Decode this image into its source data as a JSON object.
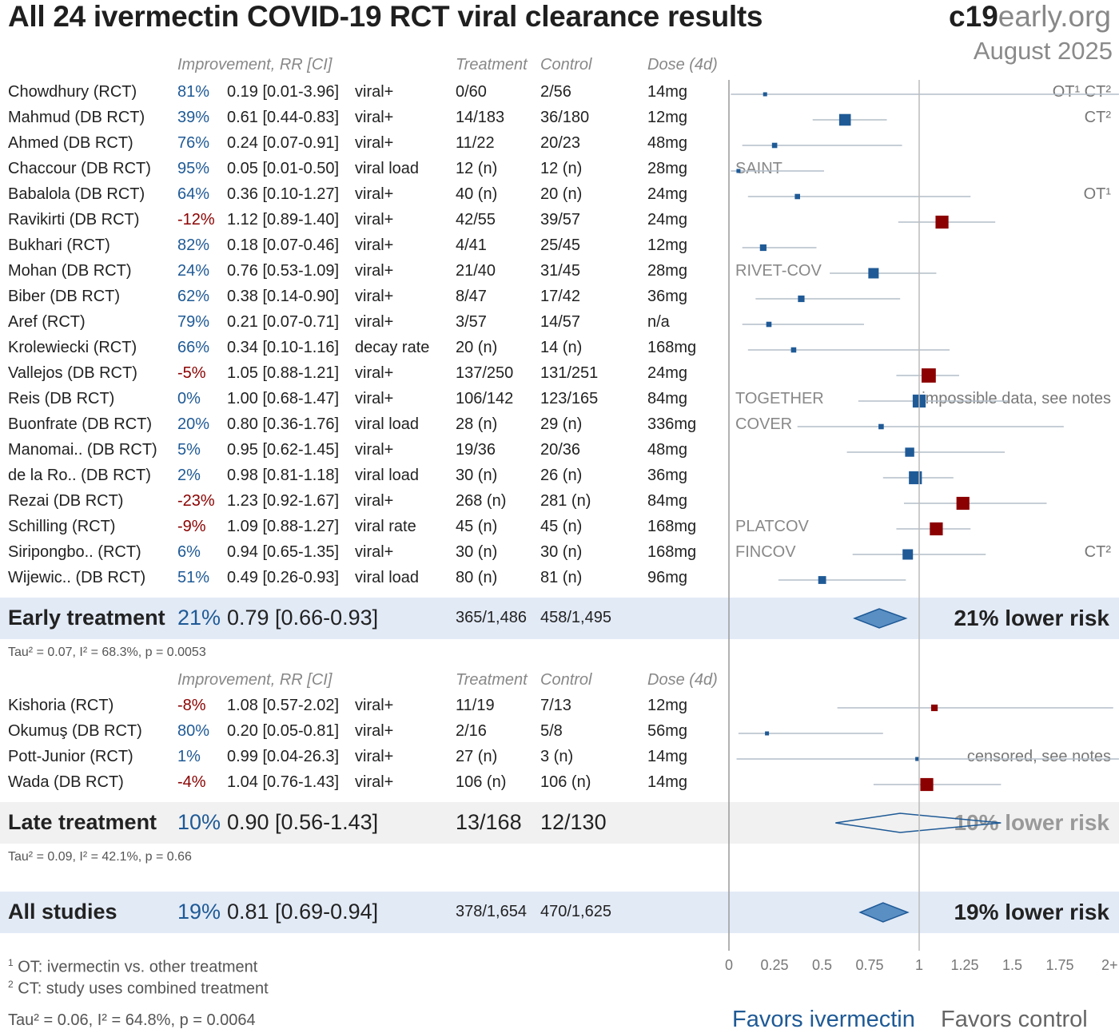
{
  "title": "All 24 ivermectin COVID-19 RCT viral clearance results",
  "brand": {
    "bold": "c19",
    "light": "early.org"
  },
  "date": "August 2025",
  "headers": {
    "improvement": "Improvement, RR [CI]",
    "treatment": "Treatment",
    "control": "Control",
    "dose": "Dose (4d)"
  },
  "colors": {
    "benefit": "#1f5a96",
    "harm": "#8b0000",
    "ci_line": "#b3bdc9",
    "diamond_fill": "#5a8fc4",
    "diamond_stroke": "#1f5a96",
    "band_blue": "#e2eaf6",
    "band_grey": "#f1f1f1"
  },
  "early_studies": [
    {
      "name": "Chowdhury (RCT)",
      "improvement": "81%",
      "rr_text": "0.19 [0.01-3.96]",
      "outcome": "viral+",
      "treatment": "0/60",
      "control": "2/56",
      "dose": "14mg",
      "rr": 0.19,
      "lo": 0.01,
      "hi": 3.96,
      "weight": 1,
      "note": "OT¹ CT²"
    },
    {
      "name": "Mahmud (DB RCT)",
      "improvement": "39%",
      "rr_text": "0.61 [0.44-0.83]",
      "outcome": "viral+",
      "treatment": "14/183",
      "control": "36/180",
      "dose": "12mg",
      "rr": 0.61,
      "lo": 0.44,
      "hi": 0.83,
      "weight": 7,
      "note": "CT²"
    },
    {
      "name": "Ahmed (DB RCT)",
      "improvement": "76%",
      "rr_text": "0.24 [0.07-0.91]",
      "outcome": "viral+",
      "treatment": "11/22",
      "control": "20/23",
      "dose": "48mg",
      "rr": 0.24,
      "lo": 0.07,
      "hi": 0.91,
      "weight": 2
    },
    {
      "name": "Chaccour (DB RCT)",
      "improvement": "95%",
      "rr_text": "0.05 [0.01-0.50]",
      "outcome": "viral load",
      "treatment": "12 (n)",
      "control": "12 (n)",
      "dose": "28mg",
      "rr": 0.05,
      "lo": 0.01,
      "hi": 0.5,
      "weight": 1,
      "trial": "SAINT"
    },
    {
      "name": "Babalola (DB RCT)",
      "improvement": "64%",
      "rr_text": "0.36 [0.10-1.27]",
      "outcome": "viral+",
      "treatment": "40 (n)",
      "control": "20 (n)",
      "dose": "24mg",
      "rr": 0.36,
      "lo": 0.1,
      "hi": 1.27,
      "weight": 2,
      "note": "OT¹"
    },
    {
      "name": "Ravikirti (DB RCT)",
      "improvement": "-12%",
      "rr_text": "1.12 [0.89-1.40]",
      "outcome": "viral+",
      "treatment": "42/55",
      "control": "39/57",
      "dose": "24mg",
      "rr": 1.12,
      "lo": 0.89,
      "hi": 1.4,
      "weight": 8
    },
    {
      "name": "Bukhari (RCT)",
      "improvement": "82%",
      "rr_text": "0.18 [0.07-0.46]",
      "outcome": "viral+",
      "treatment": "4/41",
      "control": "25/45",
      "dose": "12mg",
      "rr": 0.18,
      "lo": 0.07,
      "hi": 0.46,
      "weight": 3
    },
    {
      "name": "Mohan (DB RCT)",
      "improvement": "24%",
      "rr_text": "0.76 [0.53-1.09]",
      "outcome": "viral+",
      "treatment": "21/40",
      "control": "31/45",
      "dose": "28mg",
      "rr": 0.76,
      "lo": 0.53,
      "hi": 1.09,
      "weight": 6,
      "trial": "RIVET-COV"
    },
    {
      "name": "Biber (DB RCT)",
      "improvement": "62%",
      "rr_text": "0.38 [0.14-0.90]",
      "outcome": "viral+",
      "treatment": "8/47",
      "control": "17/42",
      "dose": "36mg",
      "rr": 0.38,
      "lo": 0.14,
      "hi": 0.9,
      "weight": 3
    },
    {
      "name": "Aref (RCT)",
      "improvement": "79%",
      "rr_text": "0.21 [0.07-0.71]",
      "outcome": "viral+",
      "treatment": "3/57",
      "control": "14/57",
      "dose": "n/a",
      "rr": 0.21,
      "lo": 0.07,
      "hi": 0.71,
      "weight": 2
    },
    {
      "name": "Krolewiecki (RCT)",
      "improvement": "66%",
      "rr_text": "0.34 [0.10-1.16]",
      "outcome": "decay rate",
      "treatment": "20 (n)",
      "control": "14 (n)",
      "dose": "168mg",
      "rr": 0.34,
      "lo": 0.1,
      "hi": 1.16,
      "weight": 2
    },
    {
      "name": "Vallejos (DB RCT)",
      "improvement": "-5%",
      "rr_text": "1.05 [0.88-1.21]",
      "outcome": "viral+",
      "treatment": "137/250",
      "control": "131/251",
      "dose": "24mg",
      "rr": 1.05,
      "lo": 0.88,
      "hi": 1.21,
      "weight": 9
    },
    {
      "name": "Reis (DB RCT)",
      "improvement": "0%",
      "rr_text": "1.00 [0.68-1.47]",
      "outcome": "viral+",
      "treatment": "106/142",
      "control": "123/165",
      "dose": "84mg",
      "rr": 1.0,
      "lo": 0.68,
      "hi": 1.47,
      "weight": 8,
      "trial": "TOGETHER",
      "note": "impossible data, see notes"
    },
    {
      "name": "Buonfrate (DB RCT)",
      "improvement": "20%",
      "rr_text": "0.80 [0.36-1.76]",
      "outcome": "viral load",
      "treatment": "28 (n)",
      "control": "29 (n)",
      "dose": "336mg",
      "rr": 0.8,
      "lo": 0.36,
      "hi": 1.76,
      "weight": 2,
      "trial": "COVER"
    },
    {
      "name": "Manomai.. (DB RCT)",
      "improvement": "5%",
      "rr_text": "0.95 [0.62-1.45]",
      "outcome": "viral+",
      "treatment": "19/36",
      "control": "20/36",
      "dose": "48mg",
      "rr": 0.95,
      "lo": 0.62,
      "hi": 1.45,
      "weight": 5
    },
    {
      "name": "de la Ro.. (DB RCT)",
      "improvement": "2%",
      "rr_text": "0.98 [0.81-1.18]",
      "outcome": "viral load",
      "treatment": "30 (n)",
      "control": "26 (n)",
      "dose": "36mg",
      "rr": 0.98,
      "lo": 0.81,
      "hi": 1.18,
      "weight": 8
    },
    {
      "name": "Rezai (DB RCT)",
      "improvement": "-23%",
      "rr_text": "1.23 [0.92-1.67]",
      "outcome": "viral+",
      "treatment": "268 (n)",
      "control": "281 (n)",
      "dose": "84mg",
      "rr": 1.23,
      "lo": 0.92,
      "hi": 1.67,
      "weight": 8
    },
    {
      "name": "Schilling (RCT)",
      "improvement": "-9%",
      "rr_text": "1.09 [0.88-1.27]",
      "outcome": "viral rate",
      "treatment": "45 (n)",
      "control": "45 (n)",
      "dose": "168mg",
      "rr": 1.09,
      "lo": 0.88,
      "hi": 1.27,
      "weight": 8,
      "trial": "PLATCOV"
    },
    {
      "name": "Siripongbo.. (RCT)",
      "improvement": "6%",
      "rr_text": "0.94 [0.65-1.35]",
      "outcome": "viral+",
      "treatment": "30 (n)",
      "control": "30 (n)",
      "dose": "168mg",
      "rr": 0.94,
      "lo": 0.65,
      "hi": 1.35,
      "weight": 6,
      "trial": "FINCOV",
      "note": "CT²"
    },
    {
      "name": "Wijewic.. (DB RCT)",
      "improvement": "51%",
      "rr_text": "0.49 [0.26-0.93]",
      "outcome": "viral load",
      "treatment": "80 (n)",
      "control": "81 (n)",
      "dose": "96mg",
      "rr": 0.49,
      "lo": 0.26,
      "hi": 0.93,
      "weight": 4
    }
  ],
  "early_summary": {
    "label": "Early treatment",
    "improvement": "21%",
    "rr_text": "0.79 [0.66-0.93]",
    "treatment": "365/1,486",
    "control": "458/1,495",
    "rr": 0.79,
    "lo": 0.66,
    "hi": 0.93,
    "result": "21% lower risk",
    "tau": "Tau² = 0.07, I² = 68.3%, p = 0.0053"
  },
  "late_studies": [
    {
      "name": "Kishoria (RCT)",
      "improvement": "-8%",
      "rr_text": "1.08 [0.57-2.02]",
      "outcome": "viral+",
      "treatment": "11/19",
      "control": "7/13",
      "dose": "12mg",
      "rr": 1.08,
      "lo": 0.57,
      "hi": 2.02,
      "weight": 3
    },
    {
      "name": "Okumuş (DB RCT)",
      "improvement": "80%",
      "rr_text": "0.20 [0.05-0.81]",
      "outcome": "viral+",
      "treatment": "2/16",
      "control": "5/8",
      "dose": "56mg",
      "rr": 0.2,
      "lo": 0.05,
      "hi": 0.81,
      "weight": 1
    },
    {
      "name": "Pott-Junior (RCT)",
      "improvement": "1%",
      "rr_text": "0.99 [0.04-26.3]",
      "outcome": "viral+",
      "treatment": "27 (n)",
      "control": "3 (n)",
      "dose": "14mg",
      "rr": 0.99,
      "lo": 0.04,
      "hi": 26.3,
      "weight": 1,
      "note": "censored, see notes"
    },
    {
      "name": "Wada (DB RCT)",
      "improvement": "-4%",
      "rr_text": "1.04 [0.76-1.43]",
      "outcome": "viral+",
      "treatment": "106 (n)",
      "control": "106 (n)",
      "dose": "14mg",
      "rr": 1.04,
      "lo": 0.76,
      "hi": 1.43,
      "weight": 8
    }
  ],
  "late_summary": {
    "label": "Late treatment",
    "improvement": "10%",
    "rr_text": "0.90 [0.56-1.43]",
    "treatment": "13/168",
    "control": "12/130",
    "rr": 0.9,
    "lo": 0.56,
    "hi": 1.43,
    "result": "10% lower risk",
    "tau": "Tau² = 0.09, I² = 42.1%, p = 0.66"
  },
  "all_summary": {
    "label": "All studies",
    "improvement": "19%",
    "rr_text": "0.81 [0.69-0.94]",
    "treatment": "378/1,654",
    "control": "470/1,625",
    "rr": 0.81,
    "lo": 0.69,
    "hi": 0.94,
    "result": "19% lower risk",
    "tau": "Tau² = 0.06, I² = 64.8%, p = 0.0064"
  },
  "footnotes": {
    "n1": "1",
    "t1": "OT: ivermectin vs. other treatment",
    "n2": "2",
    "t2": "CT: study uses combined treatment"
  },
  "axis": {
    "ticks": [
      0,
      0.25,
      0.5,
      0.75,
      1,
      1.25,
      1.5,
      1.75,
      2
    ],
    "tick_labels": [
      "0",
      "0.25",
      "0.5",
      "0.75",
      "1",
      "1.25",
      "1.5",
      "1.75",
      "2+"
    ],
    "max": 2
  },
  "favors": {
    "left": "Favors ivermectin",
    "right": "Favors control"
  },
  "chart_data": {
    "type": "forest",
    "x_scale": "risk ratio",
    "xlim": [
      0,
      2
    ],
    "reference_line": 1,
    "legend": "",
    "groups": [
      "Early treatment",
      "Late treatment",
      "All studies"
    ]
  }
}
